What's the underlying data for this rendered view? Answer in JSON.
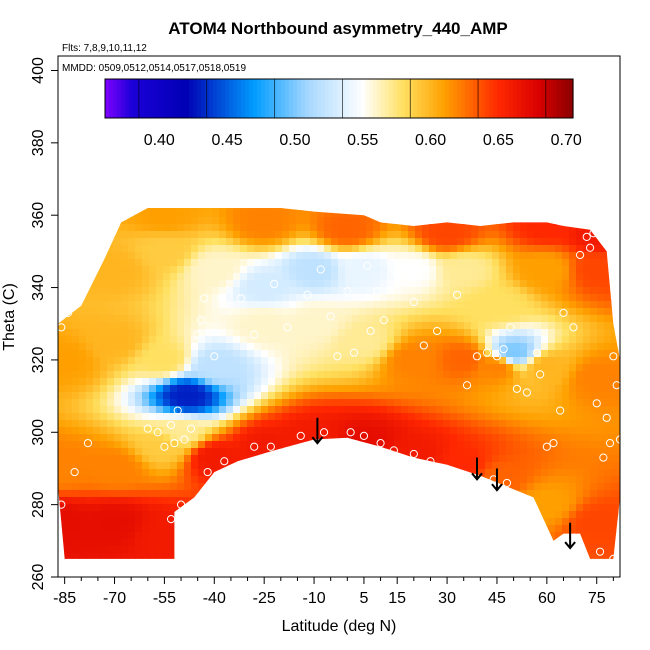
{
  "chart_data": {
    "type": "heatmap",
    "title": "ATOM4 Northbound asymmetry_440_AMP",
    "annotations": [
      "Flts: 7,8,9,10,11,12",
      "MMDD: 0509,0512,0514,0517,0518,0519"
    ],
    "xlabel": "Latitude (deg N)",
    "ylabel": "Theta (C)",
    "xlim": [
      -87,
      82
    ],
    "ylim": [
      260,
      404
    ],
    "xticks": [
      -85,
      -70,
      -55,
      -40,
      -25,
      -10,
      5,
      15,
      30,
      45,
      60,
      75
    ],
    "yticks": [
      260,
      280,
      300,
      320,
      340,
      360,
      380,
      400
    ],
    "colorbar": {
      "range": [
        0.36,
        0.705
      ],
      "ticks": [
        0.4,
        0.45,
        0.5,
        0.55,
        0.6,
        0.65,
        0.7
      ],
      "colors": [
        {
          "v": 0.36,
          "c": "#7f00ff"
        },
        {
          "v": 0.38,
          "c": "#1c00d8"
        },
        {
          "v": 0.42,
          "c": "#0000b4"
        },
        {
          "v": 0.47,
          "c": "#009cff"
        },
        {
          "v": 0.51,
          "c": "#a8d8ff"
        },
        {
          "v": 0.55,
          "c": "#ffffff"
        },
        {
          "v": 0.58,
          "c": "#ffe060"
        },
        {
          "v": 0.61,
          "c": "#ffa000"
        },
        {
          "v": 0.65,
          "c": "#ff2800"
        },
        {
          "v": 0.68,
          "c": "#d80000"
        },
        {
          "v": 0.705,
          "c": "#8b0000"
        }
      ]
    },
    "field_samples": [
      {
        "lat": -85,
        "theta": 275,
        "value": 0.67
      },
      {
        "lat": -70,
        "theta": 275,
        "value": 0.67
      },
      {
        "lat": -55,
        "theta": 272,
        "value": 0.66
      },
      {
        "lat": -85,
        "theta": 290,
        "value": 0.62
      },
      {
        "lat": -70,
        "theta": 290,
        "value": 0.62
      },
      {
        "lat": -55,
        "theta": 296,
        "value": 0.59
      },
      {
        "lat": -50,
        "theta": 300,
        "value": 0.57
      },
      {
        "lat": -40,
        "theta": 293,
        "value": 0.66
      },
      {
        "lat": -25,
        "theta": 296,
        "value": 0.66
      },
      {
        "lat": -10,
        "theta": 298,
        "value": 0.66
      },
      {
        "lat": 5,
        "theta": 297,
        "value": 0.67
      },
      {
        "lat": 20,
        "theta": 293,
        "value": 0.66
      },
      {
        "lat": 35,
        "theta": 290,
        "value": 0.65
      },
      {
        "lat": 45,
        "theta": 287,
        "value": 0.63
      },
      {
        "lat": 60,
        "theta": 280,
        "value": 0.61
      },
      {
        "lat": 75,
        "theta": 275,
        "value": 0.64
      },
      {
        "lat": -85,
        "theta": 320,
        "value": 0.61
      },
      {
        "lat": -70,
        "theta": 325,
        "value": 0.6
      },
      {
        "lat": -55,
        "theta": 320,
        "value": 0.58
      },
      {
        "lat": -48,
        "theta": 310,
        "value": 0.43
      },
      {
        "lat": -40,
        "theta": 318,
        "value": 0.52
      },
      {
        "lat": -25,
        "theta": 330,
        "value": 0.56
      },
      {
        "lat": -10,
        "theta": 330,
        "value": 0.56
      },
      {
        "lat": 5,
        "theta": 325,
        "value": 0.57
      },
      {
        "lat": 20,
        "theta": 320,
        "value": 0.62
      },
      {
        "lat": 35,
        "theta": 320,
        "value": 0.63
      },
      {
        "lat": 45,
        "theta": 318,
        "value": 0.62
      },
      {
        "lat": 50,
        "theta": 322,
        "value": 0.5
      },
      {
        "lat": 60,
        "theta": 318,
        "value": 0.6
      },
      {
        "lat": 75,
        "theta": 315,
        "value": 0.62
      },
      {
        "lat": -70,
        "theta": 345,
        "value": 0.6
      },
      {
        "lat": -55,
        "theta": 350,
        "value": 0.59
      },
      {
        "lat": -40,
        "theta": 345,
        "value": 0.56
      },
      {
        "lat": -25,
        "theta": 340,
        "value": 0.53
      },
      {
        "lat": -10,
        "theta": 345,
        "value": 0.52
      },
      {
        "lat": 5,
        "theta": 345,
        "value": 0.54
      },
      {
        "lat": 20,
        "theta": 345,
        "value": 0.55
      },
      {
        "lat": 35,
        "theta": 345,
        "value": 0.57
      },
      {
        "lat": 45,
        "theta": 335,
        "value": 0.58
      },
      {
        "lat": 60,
        "theta": 345,
        "value": 0.61
      },
      {
        "lat": 75,
        "theta": 345,
        "value": 0.64
      },
      {
        "lat": -55,
        "theta": 360,
        "value": 0.61
      },
      {
        "lat": -25,
        "theta": 358,
        "value": 0.62
      },
      {
        "lat": 0,
        "theta": 356,
        "value": 0.63
      },
      {
        "lat": 30,
        "theta": 355,
        "value": 0.64
      },
      {
        "lat": 60,
        "theta": 357,
        "value": 0.65
      },
      {
        "lat": 75,
        "theta": 355,
        "value": 0.66
      }
    ],
    "upper_boundary": [
      {
        "lat": -87,
        "theta": 330
      },
      {
        "lat": -80,
        "theta": 335
      },
      {
        "lat": -73,
        "theta": 348
      },
      {
        "lat": -68,
        "theta": 358
      },
      {
        "lat": -60,
        "theta": 362
      },
      {
        "lat": -40,
        "theta": 362
      },
      {
        "lat": -20,
        "theta": 362
      },
      {
        "lat": -10,
        "theta": 361
      },
      {
        "lat": 5,
        "theta": 360
      },
      {
        "lat": 10,
        "theta": 358
      },
      {
        "lat": 20,
        "theta": 357
      },
      {
        "lat": 30,
        "theta": 358
      },
      {
        "lat": 40,
        "theta": 357
      },
      {
        "lat": 50,
        "theta": 358
      },
      {
        "lat": 60,
        "theta": 358
      },
      {
        "lat": 65,
        "theta": 357
      },
      {
        "lat": 73,
        "theta": 356
      },
      {
        "lat": 78,
        "theta": 350
      },
      {
        "lat": 80,
        "theta": 330
      },
      {
        "lat": 82,
        "theta": 320
      }
    ],
    "lower_boundary": [
      {
        "lat": -87,
        "theta": 285
      },
      {
        "lat": -85,
        "theta": 265
      },
      {
        "lat": -52,
        "theta": 265
      },
      {
        "lat": -52,
        "theta": 278
      },
      {
        "lat": -46,
        "theta": 282
      },
      {
        "lat": -40,
        "theta": 289
      },
      {
        "lat": -33,
        "theta": 292
      },
      {
        "lat": -22,
        "theta": 295
      },
      {
        "lat": -10,
        "theta": 298
      },
      {
        "lat": 0,
        "theta": 298.5
      },
      {
        "lat": 10,
        "theta": 296
      },
      {
        "lat": 20,
        "theta": 293
      },
      {
        "lat": 30,
        "theta": 291
      },
      {
        "lat": 40,
        "theta": 288
      },
      {
        "lat": 48,
        "theta": 285
      },
      {
        "lat": 56,
        "theta": 282
      },
      {
        "lat": 62,
        "theta": 270
      },
      {
        "lat": 65,
        "theta": 272
      },
      {
        "lat": 70,
        "theta": 272
      },
      {
        "lat": 73,
        "theta": 265
      },
      {
        "lat": 80,
        "theta": 265
      },
      {
        "lat": 82,
        "theta": 282
      }
    ],
    "observation_points": [
      {
        "lat": -86,
        "theta": 329
      },
      {
        "lat": -84,
        "theta": 333
      },
      {
        "lat": -80,
        "theta": 342
      },
      {
        "lat": -76,
        "theta": 345
      },
      {
        "lat": -86,
        "theta": 280
      },
      {
        "lat": -82,
        "theta": 289
      },
      {
        "lat": -78,
        "theta": 297
      },
      {
        "lat": -60,
        "theta": 301
      },
      {
        "lat": -57,
        "theta": 300
      },
      {
        "lat": -55,
        "theta": 296
      },
      {
        "lat": -53,
        "theta": 302
      },
      {
        "lat": -52,
        "theta": 297
      },
      {
        "lat": -51,
        "theta": 306
      },
      {
        "lat": -49,
        "theta": 298
      },
      {
        "lat": -47,
        "theta": 301
      },
      {
        "lat": -45,
        "theta": 327
      },
      {
        "lat": -44,
        "theta": 331
      },
      {
        "lat": -43,
        "theta": 337
      },
      {
        "lat": -40,
        "theta": 321
      },
      {
        "lat": -38,
        "theta": 337
      },
      {
        "lat": -32,
        "theta": 337
      },
      {
        "lat": -28,
        "theta": 327
      },
      {
        "lat": -22,
        "theta": 341
      },
      {
        "lat": -18,
        "theta": 329
      },
      {
        "lat": -12,
        "theta": 338
      },
      {
        "lat": -8,
        "theta": 345
      },
      {
        "lat": -5,
        "theta": 332
      },
      {
        "lat": -3,
        "theta": 321
      },
      {
        "lat": 0,
        "theta": 339
      },
      {
        "lat": 2,
        "theta": 322
      },
      {
        "lat": 6,
        "theta": 346
      },
      {
        "lat": 7,
        "theta": 328
      },
      {
        "lat": 9,
        "theta": 339
      },
      {
        "lat": 11,
        "theta": 331
      },
      {
        "lat": 14,
        "theta": 345
      },
      {
        "lat": 20,
        "theta": 336
      },
      {
        "lat": 23,
        "theta": 324
      },
      {
        "lat": 27,
        "theta": 328
      },
      {
        "lat": 33,
        "theta": 338
      },
      {
        "lat": 36,
        "theta": 313
      },
      {
        "lat": 39,
        "theta": 321
      },
      {
        "lat": 42,
        "theta": 322
      },
      {
        "lat": 45,
        "theta": 321
      },
      {
        "lat": 47,
        "theta": 323
      },
      {
        "lat": 49,
        "theta": 329
      },
      {
        "lat": 51,
        "theta": 312
      },
      {
        "lat": 54,
        "theta": 311
      },
      {
        "lat": 57,
        "theta": 322
      },
      {
        "lat": 58,
        "theta": 316
      },
      {
        "lat": 60,
        "theta": 296
      },
      {
        "lat": 62,
        "theta": 297
      },
      {
        "lat": 64,
        "theta": 306
      },
      {
        "lat": 65,
        "theta": 333
      },
      {
        "lat": 68,
        "theta": 329
      },
      {
        "lat": 70,
        "theta": 349
      },
      {
        "lat": 72,
        "theta": 354
      },
      {
        "lat": 73,
        "theta": 351
      },
      {
        "lat": 74,
        "theta": 355
      },
      {
        "lat": 75,
        "theta": 308
      },
      {
        "lat": 77,
        "theta": 293
      },
      {
        "lat": 78,
        "theta": 304
      },
      {
        "lat": 79,
        "theta": 297
      },
      {
        "lat": 80,
        "theta": 321
      },
      {
        "lat": 81,
        "theta": 313
      },
      {
        "lat": 82,
        "theta": 298
      },
      {
        "lat": 76,
        "theta": 267
      },
      {
        "lat": 80,
        "theta": 265
      },
      {
        "lat": -53,
        "theta": 276
      },
      {
        "lat": -50,
        "theta": 280
      },
      {
        "lat": -42,
        "theta": 289
      },
      {
        "lat": -37,
        "theta": 292
      },
      {
        "lat": -28,
        "theta": 296
      },
      {
        "lat": -23,
        "theta": 296
      },
      {
        "lat": -14,
        "theta": 299
      },
      {
        "lat": -7,
        "theta": 300
      },
      {
        "lat": 1,
        "theta": 300
      },
      {
        "lat": 5,
        "theta": 299
      },
      {
        "lat": 10,
        "theta": 297
      },
      {
        "lat": 14,
        "theta": 295
      },
      {
        "lat": 20,
        "theta": 294
      },
      {
        "lat": 25,
        "theta": 292
      },
      {
        "lat": 44,
        "theta": 287
      },
      {
        "lat": 48,
        "theta": 286
      }
    ],
    "arrows": [
      {
        "lat": -9,
        "theta_top": 304,
        "theta_tip": 297
      },
      {
        "lat": 39,
        "theta_top": 293,
        "theta_tip": 287
      },
      {
        "lat": 45,
        "theta_top": 290,
        "theta_tip": 284
      },
      {
        "lat": 67,
        "theta_top": 275,
        "theta_tip": 268
      }
    ]
  }
}
